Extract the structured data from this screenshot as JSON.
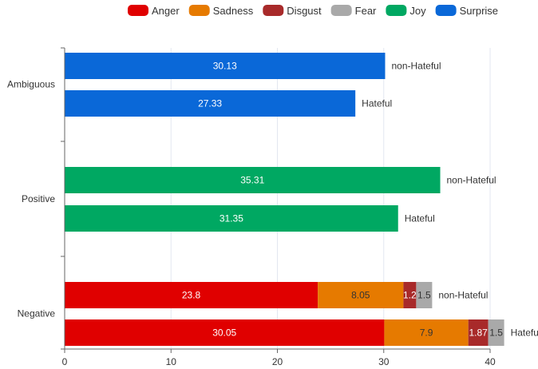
{
  "chart_data": {
    "type": "bar",
    "orientation": "horizontal",
    "stacked": true,
    "xlim": [
      0,
      40
    ],
    "x_ticks": [
      "0",
      "10",
      "20",
      "30",
      "40"
    ],
    "grid": true,
    "legend_position": "top-center",
    "categories": [
      "Ambiguous",
      "Positive",
      "Negative"
    ],
    "legend": [
      {
        "name": "Anger",
        "color": "#e00000"
      },
      {
        "name": "Sadness",
        "color": "#e67a00"
      },
      {
        "name": "Disgust",
        "color": "#a82a2a"
      },
      {
        "name": "Fear",
        "color": "#a9a9a9"
      },
      {
        "name": "Joy",
        "color": "#00a862"
      },
      {
        "name": "Surprise",
        "color": "#0a68d8"
      }
    ],
    "bars": [
      {
        "category": "Ambiguous",
        "group": "non-Hateful",
        "segments": [
          {
            "series": "Surprise",
            "value": 30.13,
            "label": "30.13"
          }
        ]
      },
      {
        "category": "Ambiguous",
        "group": "Hateful",
        "segments": [
          {
            "series": "Surprise",
            "value": 27.33,
            "label": "27.33"
          }
        ]
      },
      {
        "category": "Positive",
        "group": "non-Hateful",
        "segments": [
          {
            "series": "Joy",
            "value": 35.31,
            "label": "35.31"
          }
        ]
      },
      {
        "category": "Positive",
        "group": "Hateful",
        "segments": [
          {
            "series": "Joy",
            "value": 31.35,
            "label": "31.35"
          }
        ]
      },
      {
        "category": "Negative",
        "group": "non-Hateful",
        "segments": [
          {
            "series": "Anger",
            "value": 23.8,
            "label": "23.8"
          },
          {
            "series": "Sadness",
            "value": 8.05,
            "label": "8.05"
          },
          {
            "series": "Disgust",
            "value": 1.2,
            "label": "1.2"
          },
          {
            "series": "Fear",
            "value": 1.5,
            "label": "1.5"
          }
        ]
      },
      {
        "category": "Negative",
        "group": "Hateful",
        "segments": [
          {
            "series": "Anger",
            "value": 30.05,
            "label": "30.05"
          },
          {
            "series": "Sadness",
            "value": 7.9,
            "label": "7.9"
          },
          {
            "series": "Disgust",
            "value": 1.87,
            "label": "1.87"
          },
          {
            "series": "Fear",
            "value": 1.5,
            "label": "1.5"
          }
        ]
      }
    ]
  }
}
